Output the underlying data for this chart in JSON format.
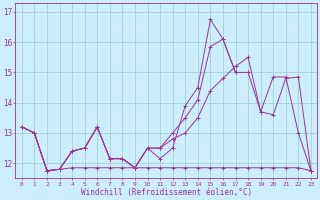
{
  "xlabel": "Windchill (Refroidissement éolien,°C)",
  "bg_color": "#cceeff",
  "line_color": "#993399",
  "grid_color": "#99cccc",
  "xlim": [
    -0.5,
    23.5
  ],
  "ylim": [
    11.5,
    17.3
  ],
  "xticks": [
    0,
    1,
    2,
    3,
    4,
    5,
    6,
    7,
    8,
    9,
    10,
    11,
    12,
    13,
    14,
    15,
    16,
    17,
    18,
    19,
    20,
    21,
    22,
    23
  ],
  "yticks": [
    12,
    13,
    14,
    15,
    16,
    17
  ],
  "series": [
    [
      13.2,
      13.0,
      11.75,
      11.8,
      12.4,
      12.5,
      13.2,
      12.15,
      12.15,
      11.85,
      12.5,
      12.15,
      12.5,
      13.9,
      14.5,
      16.75,
      16.1,
      15.0,
      null,
      null,
      null,
      null,
      null,
      null
    ],
    [
      13.2,
      13.0,
      11.75,
      11.8,
      11.85,
      11.85,
      11.85,
      11.85,
      11.85,
      11.85,
      11.85,
      11.85,
      11.85,
      11.85,
      11.85,
      11.85,
      11.85,
      11.85,
      11.85,
      11.85,
      11.85,
      11.85,
      11.85,
      11.75
    ],
    [
      13.2,
      13.0,
      11.75,
      11.8,
      12.4,
      12.5,
      13.2,
      12.15,
      12.15,
      11.85,
      12.5,
      12.5,
      12.8,
      13.0,
      13.5,
      14.4,
      14.8,
      15.2,
      15.5,
      13.7,
      13.6,
      14.8,
      14.85,
      11.75
    ],
    [
      13.2,
      13.0,
      11.75,
      11.8,
      12.4,
      12.5,
      13.2,
      12.15,
      12.15,
      11.85,
      12.5,
      12.5,
      13.0,
      13.5,
      14.1,
      15.85,
      16.1,
      15.0,
      15.0,
      13.7,
      14.85,
      14.85,
      13.0,
      11.75
    ]
  ]
}
